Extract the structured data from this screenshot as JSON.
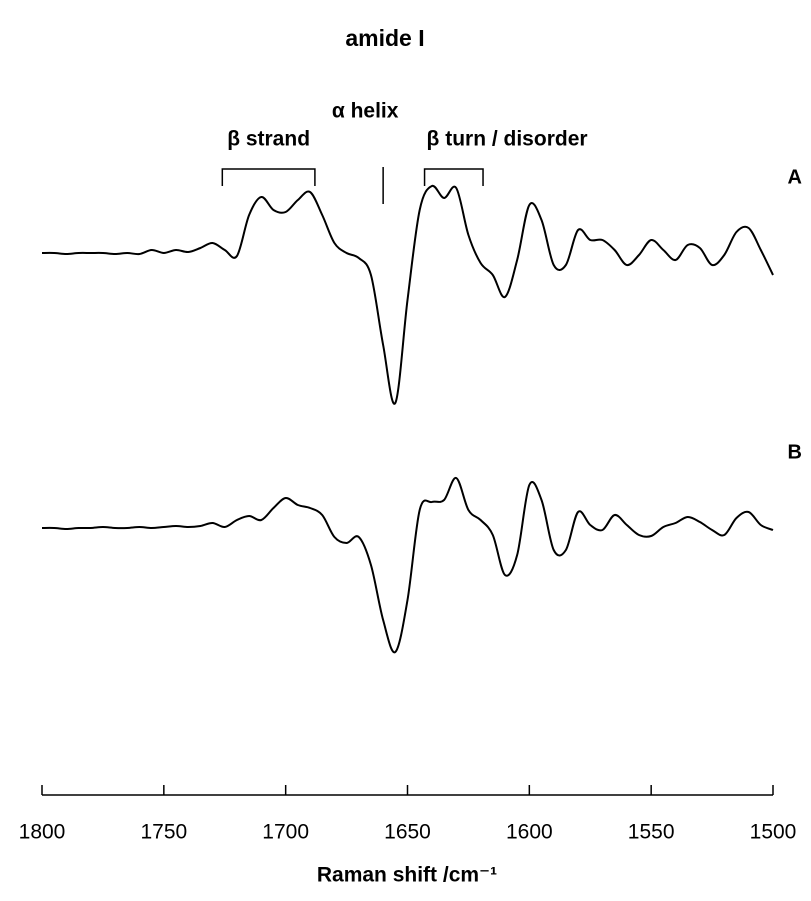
{
  "chart_data": {
    "type": "line",
    "title": "amide I",
    "x_label": "Raman shift /cm⁻¹",
    "xlim": [
      1800,
      1500
    ],
    "xticks": [
      1800,
      1750,
      1700,
      1650,
      1600,
      1550,
      1500
    ],
    "ylim": [
      0,
      70
    ],
    "x": [
      1800,
      1795,
      1790,
      1785,
      1780,
      1775,
      1770,
      1765,
      1760,
      1755,
      1750,
      1745,
      1740,
      1735,
      1730,
      1725,
      1720,
      1715,
      1710,
      1705,
      1700,
      1695,
      1690,
      1685,
      1680,
      1675,
      1670,
      1665,
      1660,
      1655,
      1650,
      1645,
      1640,
      1635,
      1630,
      1625,
      1620,
      1615,
      1610,
      1605,
      1600,
      1595,
      1590,
      1585,
      1580,
      1575,
      1570,
      1565,
      1560,
      1555,
      1550,
      1545,
      1540,
      1535,
      1530,
      1525,
      1520,
      1515,
      1510,
      1505,
      1500
    ],
    "series": [
      {
        "name": "A",
        "color": "#000000",
        "values": [
          53.7,
          53.7,
          53.6,
          53.7,
          53.7,
          53.7,
          53.6,
          53.7,
          53.6,
          54.0,
          53.7,
          54.0,
          53.8,
          54.2,
          54.7,
          54.0,
          53.4,
          57.5,
          59.3,
          58.0,
          57.8,
          59.0,
          59.8,
          57.5,
          54.7,
          53.7,
          53.2,
          51.5,
          44.5,
          38.7,
          49.0,
          58.0,
          60.4,
          59.2,
          60.2,
          55.5,
          52.7,
          51.5,
          49.3,
          53.0,
          58.5,
          57.0,
          52.5,
          52.5,
          56.0,
          55.0,
          55.0,
          54.0,
          52.5,
          53.5,
          55.0,
          54.0,
          53.0,
          54.5,
          54.2,
          52.5,
          53.5,
          55.8,
          56.2,
          54.0,
          51.5
        ]
      },
      {
        "name": "B",
        "color": "#000000",
        "values": [
          26.2,
          26.2,
          26.1,
          26.2,
          26.2,
          26.3,
          26.2,
          26.2,
          26.3,
          26.2,
          26.3,
          26.4,
          26.3,
          26.4,
          26.7,
          26.3,
          27.0,
          27.4,
          27.0,
          28.2,
          29.2,
          28.5,
          28.2,
          27.5,
          25.3,
          24.7,
          25.3,
          22.5,
          17.0,
          13.8,
          19.0,
          28.0,
          28.8,
          29.0,
          31.2,
          28.0,
          27.0,
          25.5,
          21.5,
          23.5,
          30.5,
          29.0,
          24.0,
          24.0,
          27.8,
          26.5,
          26.0,
          27.5,
          26.5,
          25.5,
          25.4,
          26.3,
          26.7,
          27.3,
          26.8,
          26.0,
          25.5,
          27.2,
          27.8,
          26.5,
          26.0
        ]
      }
    ],
    "annotations": [
      {
        "text": "β strand",
        "range": [
          1726,
          1688
        ]
      },
      {
        "text": "α helix",
        "x": 1660
      },
      {
        "text": "β turn / disorder",
        "range": [
          1643,
          1619
        ]
      }
    ]
  }
}
